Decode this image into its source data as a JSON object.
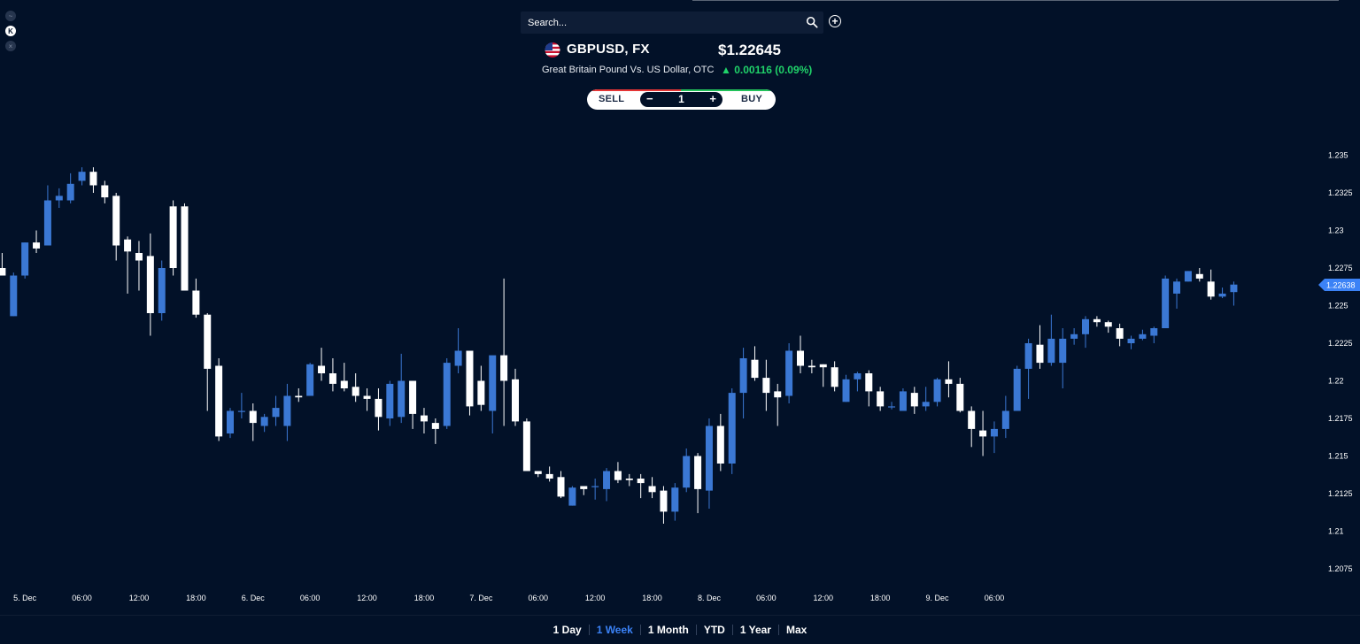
{
  "search": {
    "placeholder": "Search..."
  },
  "instrument": {
    "symbol": "GBPUSD, FX",
    "price": "$1.22645",
    "description": "Great Britain Pound Vs. US Dollar, OTC",
    "change": "0.00116 (0.09%)",
    "change_direction": "up"
  },
  "trade": {
    "sell_label": "SELL",
    "buy_label": "BUY",
    "quantity": "1",
    "minus": "−",
    "plus": "+"
  },
  "ranges": [
    {
      "label": "1 Day",
      "active": false
    },
    {
      "label": "1 Week",
      "active": true
    },
    {
      "label": "1 Month",
      "active": false
    },
    {
      "label": "YTD",
      "active": false
    },
    {
      "label": "1 Year",
      "active": false
    },
    {
      "label": "Max",
      "active": false
    }
  ],
  "colors": {
    "background": "#021128",
    "up": "#3b78d4",
    "down": "#ffffff",
    "accent": "#3b82f6",
    "change_up": "#20d36a"
  },
  "icons": {
    "search": "search-icon",
    "add": "plus-circle-icon",
    "flag": "gb-us-flag-icon"
  },
  "chart_data": {
    "type": "candlestick",
    "title": "",
    "xlabel": "",
    "ylabel": "",
    "ylim": [
      1.2065,
      1.2365
    ],
    "y_ticks": [
      "1.235",
      "1.2325",
      "1.23",
      "1.2275",
      "1.225",
      "1.2225",
      "1.22",
      "1.2175",
      "1.215",
      "1.2125",
      "1.21",
      "1.2075"
    ],
    "x_ticks": [
      {
        "label": "5. Dec",
        "index": 2
      },
      {
        "label": "06:00",
        "index": 7
      },
      {
        "label": "12:00",
        "index": 12
      },
      {
        "label": "18:00",
        "index": 17
      },
      {
        "label": "6. Dec",
        "index": 22
      },
      {
        "label": "06:00",
        "index": 27
      },
      {
        "label": "12:00",
        "index": 32
      },
      {
        "label": "18:00",
        "index": 37
      },
      {
        "label": "7. Dec",
        "index": 42
      },
      {
        "label": "06:00",
        "index": 47
      },
      {
        "label": "12:00",
        "index": 52
      },
      {
        "label": "18:00",
        "index": 57
      },
      {
        "label": "8. Dec",
        "index": 62
      },
      {
        "label": "06:00",
        "index": 67
      },
      {
        "label": "12:00",
        "index": 72
      },
      {
        "label": "18:00",
        "index": 77
      },
      {
        "label": "9. Dec",
        "index": 82
      },
      {
        "label": "06:00",
        "index": 87
      }
    ],
    "last_price": "1.22638",
    "last_value": 1.22638,
    "candles": [
      {
        "o": 1.2275,
        "h": 1.2285,
        "l": 1.227,
        "c": 1.227
      },
      {
        "o": 1.2243,
        "h": 1.2272,
        "l": 1.2243,
        "c": 1.227
      },
      {
        "o": 1.227,
        "h": 1.2292,
        "l": 1.2268,
        "c": 1.2292
      },
      {
        "o": 1.2292,
        "h": 1.23,
        "l": 1.2285,
        "c": 1.2288
      },
      {
        "o": 1.229,
        "h": 1.233,
        "l": 1.229,
        "c": 1.232
      },
      {
        "o": 1.232,
        "h": 1.2328,
        "l": 1.2315,
        "c": 1.2323
      },
      {
        "o": 1.232,
        "h": 1.2338,
        "l": 1.2318,
        "c": 1.2331
      },
      {
        "o": 1.2333,
        "h": 1.2342,
        "l": 1.233,
        "c": 1.2339
      },
      {
        "o": 1.2339,
        "h": 1.2342,
        "l": 1.2325,
        "c": 1.233
      },
      {
        "o": 1.233,
        "h": 1.2333,
        "l": 1.2318,
        "c": 1.2322
      },
      {
        "o": 1.2323,
        "h": 1.2325,
        "l": 1.228,
        "c": 1.229
      },
      {
        "o": 1.2294,
        "h": 1.2296,
        "l": 1.2258,
        "c": 1.2286
      },
      {
        "o": 1.2285,
        "h": 1.2293,
        "l": 1.226,
        "c": 1.228
      },
      {
        "o": 1.2283,
        "h": 1.2298,
        "l": 1.223,
        "c": 1.2245
      },
      {
        "o": 1.2245,
        "h": 1.228,
        "l": 1.224,
        "c": 1.2275
      },
      {
        "o": 1.2316,
        "h": 1.232,
        "l": 1.227,
        "c": 1.2275
      },
      {
        "o": 1.2316,
        "h": 1.2318,
        "l": 1.226,
        "c": 1.226
      },
      {
        "o": 1.226,
        "h": 1.2268,
        "l": 1.2242,
        "c": 1.2244
      },
      {
        "o": 1.2244,
        "h": 1.2245,
        "l": 1.218,
        "c": 1.2208
      },
      {
        "o": 1.221,
        "h": 1.2215,
        "l": 1.216,
        "c": 1.2163
      },
      {
        "o": 1.2165,
        "h": 1.2182,
        "l": 1.2162,
        "c": 1.218
      },
      {
        "o": 1.218,
        "h": 1.2192,
        "l": 1.2175,
        "c": 1.218
      },
      {
        "o": 1.218,
        "h": 1.2185,
        "l": 1.216,
        "c": 1.2172
      },
      {
        "o": 1.217,
        "h": 1.2178,
        "l": 1.2166,
        "c": 1.2176
      },
      {
        "o": 1.2176,
        "h": 1.219,
        "l": 1.217,
        "c": 1.2182
      },
      {
        "o": 1.217,
        "h": 1.2198,
        "l": 1.216,
        "c": 1.219
      },
      {
        "o": 1.219,
        "h": 1.2195,
        "l": 1.2186,
        "c": 1.2189
      },
      {
        "o": 1.219,
        "h": 1.2212,
        "l": 1.219,
        "c": 1.2211
      },
      {
        "o": 1.221,
        "h": 1.2222,
        "l": 1.22,
        "c": 1.2205
      },
      {
        "o": 1.2205,
        "h": 1.2215,
        "l": 1.2193,
        "c": 1.2198
      },
      {
        "o": 1.22,
        "h": 1.2212,
        "l": 1.2193,
        "c": 1.2195
      },
      {
        "o": 1.2196,
        "h": 1.2205,
        "l": 1.2186,
        "c": 1.219
      },
      {
        "o": 1.219,
        "h": 1.2195,
        "l": 1.218,
        "c": 1.2188
      },
      {
        "o": 1.2188,
        "h": 1.2195,
        "l": 1.2167,
        "c": 1.2176
      },
      {
        "o": 1.2175,
        "h": 1.22,
        "l": 1.217,
        "c": 1.2198
      },
      {
        "o": 1.2176,
        "h": 1.2218,
        "l": 1.2172,
        "c": 1.22
      },
      {
        "o": 1.22,
        "h": 1.22,
        "l": 1.2168,
        "c": 1.2178
      },
      {
        "o": 1.2177,
        "h": 1.2182,
        "l": 1.2165,
        "c": 1.2173
      },
      {
        "o": 1.2172,
        "h": 1.2175,
        "l": 1.2158,
        "c": 1.2168
      },
      {
        "o": 1.217,
        "h": 1.2215,
        "l": 1.2168,
        "c": 1.2212
      },
      {
        "o": 1.221,
        "h": 1.2235,
        "l": 1.2205,
        "c": 1.222
      },
      {
        "o": 1.222,
        "h": 1.222,
        "l": 1.2177,
        "c": 1.2183
      },
      {
        "o": 1.22,
        "h": 1.221,
        "l": 1.218,
        "c": 1.2184
      },
      {
        "o": 1.218,
        "h": 1.2215,
        "l": 1.2165,
        "c": 1.2217
      },
      {
        "o": 1.2217,
        "h": 1.2268,
        "l": 1.217,
        "c": 1.22
      },
      {
        "o": 1.2201,
        "h": 1.2208,
        "l": 1.217,
        "c": 1.2173
      },
      {
        "o": 1.2173,
        "h": 1.2175,
        "l": 1.214,
        "c": 1.214
      },
      {
        "o": 1.214,
        "h": 1.214,
        "l": 1.2136,
        "c": 1.2138
      },
      {
        "o": 1.2138,
        "h": 1.2143,
        "l": 1.2133,
        "c": 1.2135
      },
      {
        "o": 1.2136,
        "h": 1.214,
        "l": 1.2122,
        "c": 1.2123
      },
      {
        "o": 1.2117,
        "h": 1.213,
        "l": 1.2117,
        "c": 1.2129
      },
      {
        "o": 1.213,
        "h": 1.213,
        "l": 1.2124,
        "c": 1.2128
      },
      {
        "o": 1.213,
        "h": 1.2135,
        "l": 1.2121,
        "c": 1.213
      },
      {
        "o": 1.2128,
        "h": 1.2142,
        "l": 1.212,
        "c": 1.214
      },
      {
        "o": 1.214,
        "h": 1.2146,
        "l": 1.2132,
        "c": 1.2134
      },
      {
        "o": 1.2135,
        "h": 1.2138,
        "l": 1.213,
        "c": 1.2134
      },
      {
        "o": 1.2135,
        "h": 1.2138,
        "l": 1.2122,
        "c": 1.2132
      },
      {
        "o": 1.213,
        "h": 1.2136,
        "l": 1.2122,
        "c": 1.2126
      },
      {
        "o": 1.2127,
        "h": 1.213,
        "l": 1.2105,
        "c": 1.2113
      },
      {
        "o": 1.2113,
        "h": 1.2132,
        "l": 1.2107,
        "c": 1.2129
      },
      {
        "o": 1.2129,
        "h": 1.2155,
        "l": 1.2126,
        "c": 1.215
      },
      {
        "o": 1.215,
        "h": 1.2152,
        "l": 1.2112,
        "c": 1.2128
      },
      {
        "o": 1.2127,
        "h": 1.2175,
        "l": 1.2115,
        "c": 1.217
      },
      {
        "o": 1.217,
        "h": 1.2178,
        "l": 1.214,
        "c": 1.2145
      },
      {
        "o": 1.2145,
        "h": 1.2195,
        "l": 1.2138,
        "c": 1.2192
      },
      {
        "o": 1.2192,
        "h": 1.2222,
        "l": 1.2175,
        "c": 1.2215
      },
      {
        "o": 1.2214,
        "h": 1.2223,
        "l": 1.22,
        "c": 1.2202
      },
      {
        "o": 1.2202,
        "h": 1.2214,
        "l": 1.218,
        "c": 1.2192
      },
      {
        "o": 1.2193,
        "h": 1.2198,
        "l": 1.217,
        "c": 1.2189
      },
      {
        "o": 1.219,
        "h": 1.2225,
        "l": 1.2185,
        "c": 1.222
      },
      {
        "o": 1.222,
        "h": 1.223,
        "l": 1.2205,
        "c": 1.221
      },
      {
        "o": 1.221,
        "h": 1.2214,
        "l": 1.2205,
        "c": 1.2209
      },
      {
        "o": 1.2211,
        "h": 1.2211,
        "l": 1.2196,
        "c": 1.2209
      },
      {
        "o": 1.2209,
        "h": 1.2213,
        "l": 1.2193,
        "c": 1.2196
      },
      {
        "o": 1.2186,
        "h": 1.2204,
        "l": 1.2186,
        "c": 1.2201
      },
      {
        "o": 1.2201,
        "h": 1.2206,
        "l": 1.2193,
        "c": 1.2205
      },
      {
        "o": 1.2205,
        "h": 1.2207,
        "l": 1.2183,
        "c": 1.2193
      },
      {
        "o": 1.2193,
        "h": 1.2196,
        "l": 1.218,
        "c": 1.2183
      },
      {
        "o": 1.2183,
        "h": 1.2186,
        "l": 1.2181,
        "c": 1.2183
      },
      {
        "o": 1.218,
        "h": 1.2195,
        "l": 1.218,
        "c": 1.2193
      },
      {
        "o": 1.2192,
        "h": 1.2196,
        "l": 1.2178,
        "c": 1.2183
      },
      {
        "o": 1.2183,
        "h": 1.2196,
        "l": 1.218,
        "c": 1.2186
      },
      {
        "o": 1.2186,
        "h": 1.2202,
        "l": 1.2183,
        "c": 1.2201
      },
      {
        "o": 1.2201,
        "h": 1.2213,
        "l": 1.2189,
        "c": 1.2198
      },
      {
        "o": 1.2198,
        "h": 1.2202,
        "l": 1.2179,
        "c": 1.218
      },
      {
        "o": 1.218,
        "h": 1.2183,
        "l": 1.2156,
        "c": 1.2168
      },
      {
        "o": 1.2167,
        "h": 1.218,
        "l": 1.215,
        "c": 1.2163
      },
      {
        "o": 1.2163,
        "h": 1.2173,
        "l": 1.2152,
        "c": 1.2168
      },
      {
        "o": 1.2168,
        "h": 1.219,
        "l": 1.2162,
        "c": 1.218
      },
      {
        "o": 1.218,
        "h": 1.221,
        "l": 1.218,
        "c": 1.2208
      },
      {
        "o": 1.2208,
        "h": 1.2228,
        "l": 1.2188,
        "c": 1.2225
      },
      {
        "o": 1.2224,
        "h": 1.2237,
        "l": 1.2208,
        "c": 1.2212
      },
      {
        "o": 1.2212,
        "h": 1.2244,
        "l": 1.221,
        "c": 1.2228
      },
      {
        "o": 1.2212,
        "h": 1.2235,
        "l": 1.2195,
        "c": 1.2228
      },
      {
        "o": 1.2228,
        "h": 1.2235,
        "l": 1.2224,
        "c": 1.2231
      },
      {
        "o": 1.2231,
        "h": 1.2243,
        "l": 1.2222,
        "c": 1.2241
      },
      {
        "o": 1.2241,
        "h": 1.2243,
        "l": 1.2236,
        "c": 1.2239
      },
      {
        "o": 1.2239,
        "h": 1.224,
        "l": 1.2232,
        "c": 1.2236
      },
      {
        "o": 1.2235,
        "h": 1.2238,
        "l": 1.2223,
        "c": 1.2228
      },
      {
        "o": 1.2225,
        "h": 1.223,
        "l": 1.2221,
        "c": 1.2228
      },
      {
        "o": 1.2228,
        "h": 1.2234,
        "l": 1.2227,
        "c": 1.2231
      },
      {
        "o": 1.223,
        "h": 1.2236,
        "l": 1.2225,
        "c": 1.2235
      },
      {
        "o": 1.2235,
        "h": 1.227,
        "l": 1.2235,
        "c": 1.2268
      },
      {
        "o": 1.2258,
        "h": 1.2268,
        "l": 1.2248,
        "c": 1.2266
      },
      {
        "o": 1.2266,
        "h": 1.2273,
        "l": 1.2266,
        "c": 1.2273
      },
      {
        "o": 1.2271,
        "h": 1.2275,
        "l": 1.2266,
        "c": 1.2268
      },
      {
        "o": 1.2266,
        "h": 1.2274,
        "l": 1.2254,
        "c": 1.2256
      },
      {
        "o": 1.2256,
        "h": 1.2262,
        "l": 1.2255,
        "c": 1.2258
      },
      {
        "o": 1.2259,
        "h": 1.2266,
        "l": 1.225,
        "c": 1.2264
      }
    ]
  }
}
